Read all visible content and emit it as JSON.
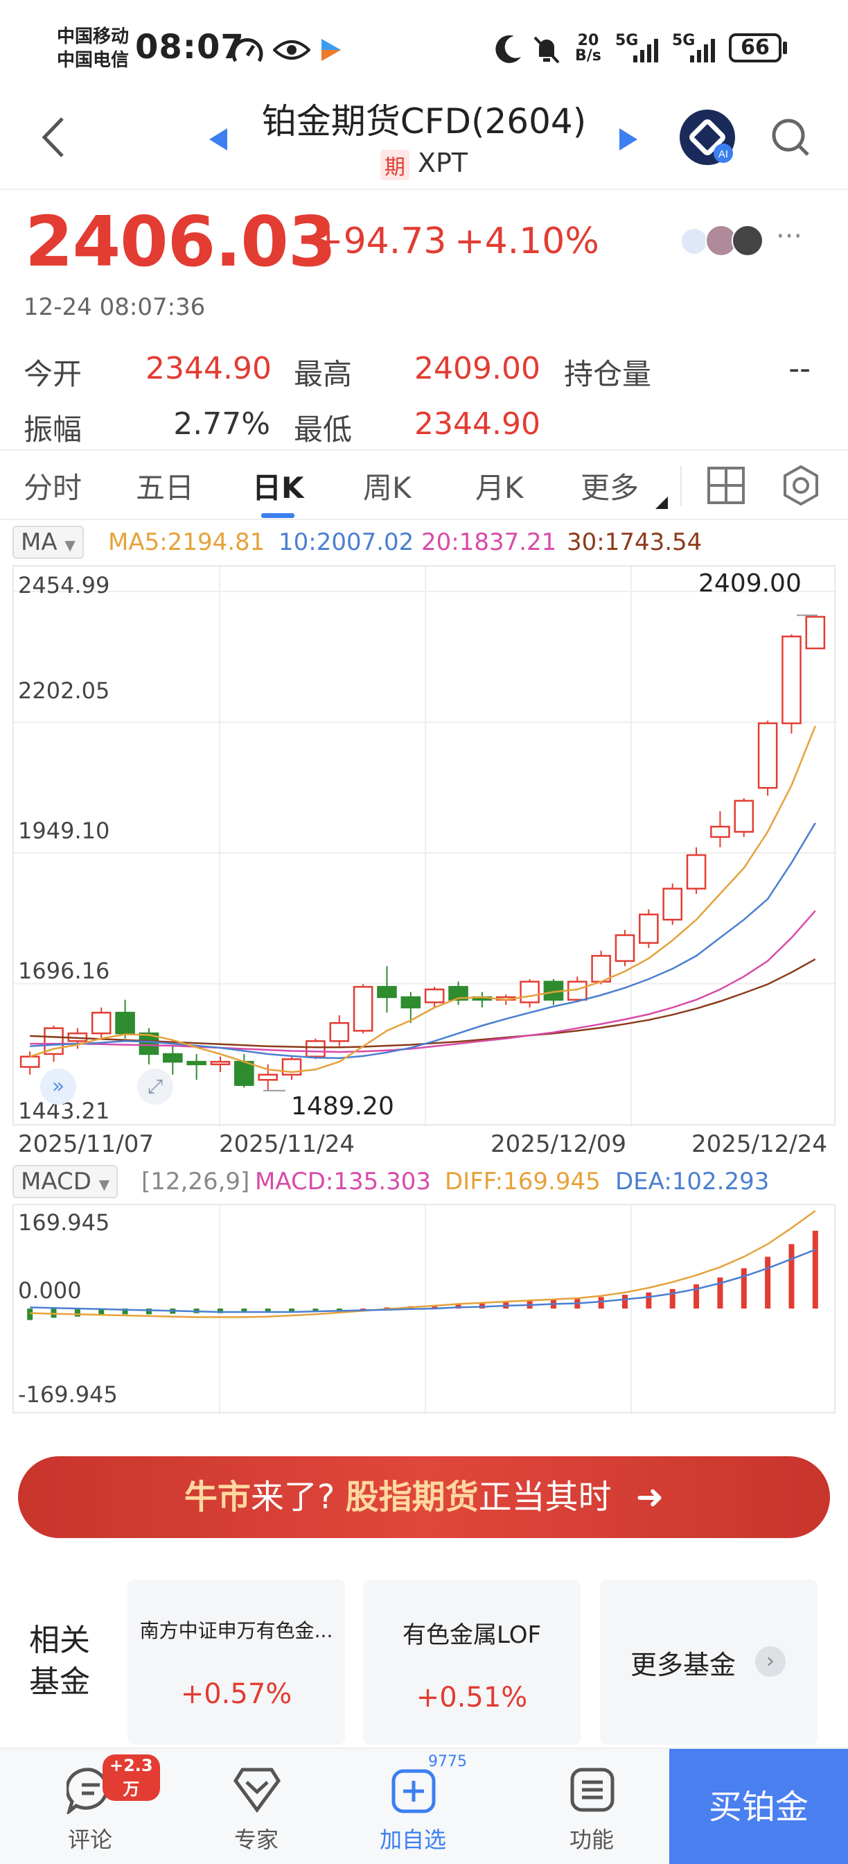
{
  "status_bar": {
    "carrier1": "中国移动",
    "carrier2": "中国电信",
    "time": "08:07",
    "net_speed_top": "20",
    "net_speed_bottom": "B/s",
    "signal1": "5G",
    "signal2": "5G",
    "battery": "66"
  },
  "header": {
    "title": "铂金期货CFD(2604)",
    "badge": "期",
    "symbol": "XPT"
  },
  "quote": {
    "price": "2406.03",
    "change": "+94.73",
    "change_pct": "+4.10%",
    "timestamp": "12-24 08:07:36",
    "open_label": "今开",
    "open_value": "2344.90",
    "high_label": "最高",
    "high_value": "2409.00",
    "oi_label": "持仓量",
    "oi_value": "--",
    "amp_label": "振幅",
    "amp_value": "2.77%",
    "low_label": "最低",
    "low_value": "2344.90"
  },
  "tabs": [
    "分时",
    "五日",
    "日K",
    "周K",
    "月K",
    "更多"
  ],
  "active_tab": "日K",
  "ma_legend": {
    "pill": "MA",
    "ma5": "MA5:2194.81",
    "ma10": "10:2007.02",
    "ma20": "20:1837.21",
    "ma30": "30:1743.54"
  },
  "colors": {
    "up": "#e23c33",
    "down": "#2e8b2e",
    "ma5": "#e6a13a",
    "ma10": "#4a7fd0",
    "ma20": "#d84aa8",
    "ma30": "#8b3a1a",
    "accent": "#4a7ff0"
  },
  "chart_data": {
    "type": "candlestick",
    "y_ticks": [
      "2454.99",
      "2202.05",
      "1949.10",
      "1696.16",
      "1443.21"
    ],
    "ylim": [
      1443.21,
      2454.99
    ],
    "x_ticks": [
      "2025/11/07",
      "2025/11/24",
      "2025/12/09",
      "2025/12/24"
    ],
    "max_label": "2409.00",
    "min_label": "1489.20",
    "candles": [
      [
        1535,
        1555,
        1520,
        1565
      ],
      [
        1560,
        1610,
        1545,
        1615
      ],
      [
        1585,
        1600,
        1570,
        1610
      ],
      [
        1600,
        1640,
        1590,
        1650
      ],
      [
        1640,
        1600,
        1590,
        1665
      ],
      [
        1600,
        1560,
        1540,
        1610
      ],
      [
        1560,
        1545,
        1520,
        1575
      ],
      [
        1545,
        1540,
        1510,
        1560
      ],
      [
        1540,
        1545,
        1525,
        1555
      ],
      [
        1545,
        1500,
        1495,
        1560
      ],
      [
        1510,
        1520,
        1489.2,
        1540
      ],
      [
        1520,
        1550,
        1510,
        1555
      ],
      [
        1555,
        1585,
        1550,
        1590
      ],
      [
        1585,
        1620,
        1575,
        1635
      ],
      [
        1605,
        1690,
        1600,
        1695
      ],
      [
        1690,
        1670,
        1640,
        1730
      ],
      [
        1670,
        1650,
        1620,
        1680
      ],
      [
        1660,
        1685,
        1650,
        1690
      ],
      [
        1690,
        1665,
        1655,
        1700
      ],
      [
        1670,
        1665,
        1650,
        1680
      ],
      [
        1665,
        1670,
        1655,
        1675
      ],
      [
        1660,
        1700,
        1650,
        1705
      ],
      [
        1700,
        1665,
        1655,
        1705
      ],
      [
        1665,
        1700,
        1660,
        1710
      ],
      [
        1700,
        1750,
        1695,
        1760
      ],
      [
        1740,
        1790,
        1730,
        1800
      ],
      [
        1775,
        1830,
        1765,
        1840
      ],
      [
        1820,
        1880,
        1810,
        1890
      ],
      [
        1880,
        1945,
        1870,
        1960
      ],
      [
        1980,
        2000,
        1960,
        2030
      ],
      [
        1990,
        2050,
        1980,
        2055
      ],
      [
        2075,
        2200,
        2060,
        2205
      ],
      [
        2200,
        2368,
        2180,
        2372
      ],
      [
        2344.9,
        2406.03,
        2344.9,
        2409
      ]
    ],
    "ma5": [
      1555,
      1570,
      1578,
      1590,
      1598,
      1597,
      1587,
      1573,
      1560,
      1545,
      1530,
      1525,
      1530,
      1545,
      1575,
      1605,
      1625,
      1650,
      1668,
      1670,
      1665,
      1672,
      1680,
      1685,
      1700,
      1720,
      1745,
      1780,
      1820,
      1870,
      1920,
      1990,
      2080,
      2194.81
    ],
    "ma10": [
      1575,
      1578,
      1580,
      1582,
      1585,
      1584,
      1580,
      1576,
      1572,
      1566,
      1560,
      1556,
      1553,
      1552,
      1556,
      1563,
      1572,
      1585,
      1600,
      1615,
      1628,
      1640,
      1652,
      1662,
      1674,
      1688,
      1705,
      1725,
      1750,
      1785,
      1820,
      1860,
      1930,
      2007.02
    ],
    "ma20": [
      1580,
      1580,
      1580,
      1579,
      1578,
      1577,
      1576,
      1574,
      1572,
      1570,
      1568,
      1566,
      1565,
      1564,
      1565,
      1567,
      1570,
      1575,
      1580,
      1585,
      1590,
      1596,
      1602,
      1610,
      1618,
      1627,
      1637,
      1650,
      1665,
      1685,
      1710,
      1740,
      1785,
      1837.21
    ],
    "ma30": [
      1595,
      1593,
      1591,
      1589,
      1587,
      1585,
      1583,
      1581,
      1579,
      1577,
      1575,
      1574,
      1573,
      1573,
      1574,
      1576,
      1578,
      1581,
      1584,
      1588,
      1592,
      1596,
      1600,
      1605,
      1611,
      1618,
      1626,
      1636,
      1648,
      1662,
      1678,
      1695,
      1718,
      1743.54
    ]
  },
  "macd": {
    "pill": "MACD",
    "params": "[12,26,9]",
    "macd_label": "MACD:135.303",
    "diff_label": "DIFF:169.945",
    "dea_label": "DEA:102.293",
    "y_ticks": [
      "169.945",
      "0.000",
      "-169.945"
    ],
    "ylim": [
      -169.945,
      169.945
    ],
    "histogram": [
      -20,
      -16,
      -14,
      -12,
      -10,
      -10,
      -9,
      -8,
      -8,
      -7,
      -7,
      -6,
      -4,
      -2,
      0,
      2,
      4,
      6,
      8,
      10,
      12,
      14,
      16,
      18,
      20,
      24,
      28,
      34,
      42,
      54,
      70,
      90,
      112,
      135.303
    ],
    "diff": [
      -8,
      -9,
      -10,
      -11,
      -12,
      -13,
      -14,
      -15,
      -15,
      -15,
      -14,
      -12,
      -10,
      -7,
      -4,
      -1,
      2,
      5,
      8,
      10,
      12,
      14,
      16,
      18,
      22,
      28,
      36,
      46,
      58,
      72,
      90,
      112,
      140,
      169.945
    ],
    "dea": [
      2,
      1,
      0,
      -1,
      -2,
      -3,
      -4,
      -5,
      -6,
      -6,
      -6,
      -6,
      -5,
      -4,
      -3,
      -2,
      -1,
      0,
      2,
      3,
      5,
      6,
      8,
      9,
      12,
      16,
      20,
      26,
      34,
      44,
      56,
      70,
      86,
      102.293
    ]
  },
  "banner": {
    "part1": "牛市",
    "part2": "来了?",
    "part3": "股指期货",
    "part4": "正当其时",
    "arrow": "➜"
  },
  "funds": {
    "title_line1": "相关",
    "title_line2": "基金",
    "items": [
      {
        "name": "南方中证申万有色金...",
        "change": "+0.57%"
      },
      {
        "name": "有色金属LOF",
        "change": "+0.51%"
      }
    ],
    "more": "更多基金"
  },
  "bottom_bar": {
    "comment": "评论",
    "comment_badge": "+2.3万",
    "expert": "专家",
    "watch": "加自选",
    "watch_count": "9775",
    "func": "功能",
    "buy": "买铂金"
  }
}
